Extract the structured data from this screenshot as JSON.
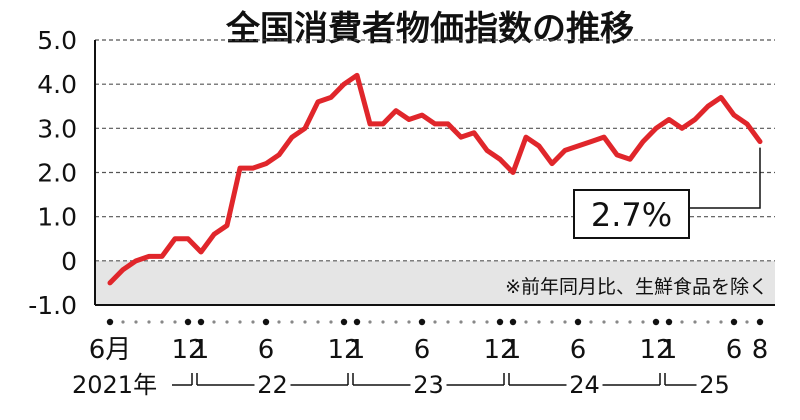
{
  "chart_data": {
    "type": "line",
    "title": "全国消費者物価指数の推移",
    "note": "※前年同月比、生鮮食品を除く",
    "ylim": [
      -1.0,
      5.0
    ],
    "yticks": [
      "5.0",
      "4.0",
      "3.0",
      "2.0",
      "1.0",
      "0",
      "-1.0"
    ],
    "ytick_values": [
      5,
      4,
      3,
      2,
      1,
      0,
      -1
    ],
    "grid": true,
    "x_tick_labels": [
      {
        "month_index": 0,
        "label": "6月"
      },
      {
        "month_index": 6,
        "label": "12"
      },
      {
        "month_index": 7,
        "label": "1"
      },
      {
        "month_index": 12,
        "label": "6"
      },
      {
        "month_index": 18,
        "label": "12"
      },
      {
        "month_index": 19,
        "label": "1"
      },
      {
        "month_index": 24,
        "label": "6"
      },
      {
        "month_index": 30,
        "label": "12"
      },
      {
        "month_index": 31,
        "label": "1"
      },
      {
        "month_index": 36,
        "label": "6"
      },
      {
        "month_index": 42,
        "label": "12"
      },
      {
        "month_index": 43,
        "label": "1"
      },
      {
        "month_index": 48,
        "label": "6"
      },
      {
        "month_index": 50,
        "label": "8"
      }
    ],
    "year_labels": [
      {
        "label": "2021年",
        "start": 0,
        "end": 6
      },
      {
        "label": "22",
        "start": 7,
        "end": 18
      },
      {
        "label": "23",
        "start": 19,
        "end": 30
      },
      {
        "label": "24",
        "start": 31,
        "end": 42
      },
      {
        "label": "25",
        "start": 43,
        "end": 50
      }
    ],
    "series": [
      {
        "color": "#e0262b",
        "x": [
          "2021-06",
          "2021-07",
          "2021-08",
          "2021-09",
          "2021-10",
          "2021-11",
          "2021-12",
          "2022-01",
          "2022-02",
          "2022-03",
          "2022-04",
          "2022-05",
          "2022-06",
          "2022-07",
          "2022-08",
          "2022-09",
          "2022-10",
          "2022-11",
          "2022-12",
          "2023-01",
          "2023-02",
          "2023-03",
          "2023-04",
          "2023-05",
          "2023-06",
          "2023-07",
          "2023-08",
          "2023-09",
          "2023-10",
          "2023-11",
          "2023-12",
          "2024-01",
          "2024-02",
          "2024-03",
          "2024-04",
          "2024-05",
          "2024-06",
          "2024-07",
          "2024-08",
          "2024-09",
          "2024-10",
          "2024-11",
          "2024-12",
          "2025-01",
          "2025-02",
          "2025-03",
          "2025-04",
          "2025-05",
          "2025-06",
          "2025-07",
          "2025-08"
        ],
        "values": [
          -0.5,
          -0.2,
          0.0,
          0.1,
          0.1,
          0.5,
          0.5,
          0.2,
          0.6,
          0.8,
          2.1,
          2.1,
          2.2,
          2.4,
          2.8,
          3.0,
          3.6,
          3.7,
          4.0,
          4.2,
          3.1,
          3.1,
          3.4,
          3.2,
          3.3,
          3.1,
          3.1,
          2.8,
          2.9,
          2.5,
          2.3,
          2.0,
          2.8,
          2.6,
          2.2,
          2.5,
          2.6,
          2.7,
          2.8,
          2.4,
          2.3,
          2.7,
          3.0,
          3.2,
          3.0,
          3.2,
          3.5,
          3.7,
          3.3,
          3.1,
          2.7
        ]
      }
    ],
    "callout": {
      "label": "2.7%",
      "value": 2.7,
      "month_index": 50
    }
  }
}
